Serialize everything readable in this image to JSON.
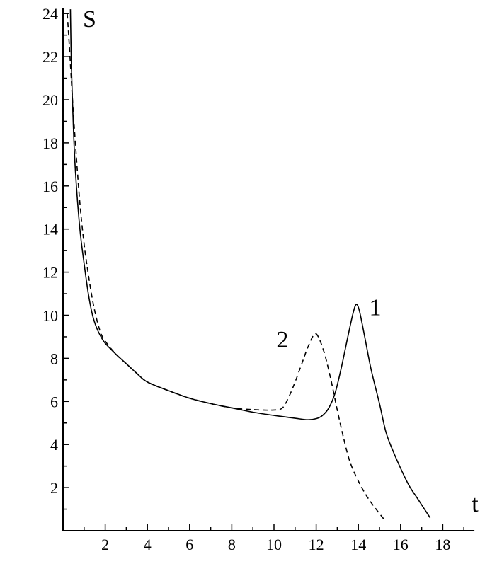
{
  "chart_data": {
    "type": "line",
    "title": "",
    "xlabel": "t",
    "ylabel": "S",
    "xlim": [
      0,
      19.5
    ],
    "ylim": [
      0,
      24.2
    ],
    "grid": false,
    "legend": "none",
    "x_ticks": [
      2,
      4,
      6,
      8,
      10,
      12,
      14,
      16,
      18
    ],
    "y_ticks": [
      2,
      4,
      6,
      8,
      10,
      12,
      14,
      16,
      18,
      20,
      22,
      24
    ],
    "series": [
      {
        "name": "1",
        "style": "solid",
        "color": "#000000",
        "points": [
          [
            0.35,
            24.2
          ],
          [
            0.4,
            21.5
          ],
          [
            0.5,
            18.5
          ],
          [
            0.6,
            16.5
          ],
          [
            0.8,
            14.0
          ],
          [
            1.0,
            12.4
          ],
          [
            1.2,
            11.0
          ],
          [
            1.4,
            10.0
          ],
          [
            1.6,
            9.4
          ],
          [
            1.8,
            9.0
          ],
          [
            2.0,
            8.7
          ],
          [
            2.5,
            8.2
          ],
          [
            3.0,
            7.75
          ],
          [
            3.5,
            7.3
          ],
          [
            4.0,
            6.9
          ],
          [
            5.0,
            6.5
          ],
          [
            6.0,
            6.15
          ],
          [
            7.0,
            5.9
          ],
          [
            8.0,
            5.7
          ],
          [
            9.0,
            5.5
          ],
          [
            10.0,
            5.35
          ],
          [
            11.0,
            5.22
          ],
          [
            11.6,
            5.15
          ],
          [
            12.0,
            5.2
          ],
          [
            12.3,
            5.35
          ],
          [
            12.6,
            5.7
          ],
          [
            12.9,
            6.4
          ],
          [
            13.2,
            7.6
          ],
          [
            13.5,
            9.0
          ],
          [
            13.75,
            10.1
          ],
          [
            13.9,
            10.5
          ],
          [
            14.05,
            10.2
          ],
          [
            14.3,
            9.0
          ],
          [
            14.6,
            7.5
          ],
          [
            15.0,
            5.9
          ],
          [
            15.3,
            4.6
          ],
          [
            15.6,
            3.8
          ],
          [
            16.0,
            2.9
          ],
          [
            16.4,
            2.1
          ],
          [
            16.8,
            1.5
          ],
          [
            17.1,
            1.05
          ],
          [
            17.4,
            0.6
          ]
        ]
      },
      {
        "name": "2",
        "style": "dashed",
        "color": "#000000",
        "points": [
          [
            0.2,
            24.0
          ],
          [
            0.3,
            22.5
          ],
          [
            0.45,
            20.0
          ],
          [
            0.6,
            17.8
          ],
          [
            0.8,
            15.2
          ],
          [
            1.0,
            13.3
          ],
          [
            1.2,
            11.9
          ],
          [
            1.4,
            10.7
          ],
          [
            1.6,
            9.8
          ],
          [
            1.8,
            9.15
          ],
          [
            2.0,
            8.8
          ],
          [
            2.5,
            8.2
          ],
          [
            3.0,
            7.75
          ],
          [
            3.5,
            7.3
          ],
          [
            4.0,
            6.9
          ],
          [
            5.0,
            6.5
          ],
          [
            6.0,
            6.15
          ],
          [
            7.0,
            5.9
          ],
          [
            8.0,
            5.7
          ],
          [
            9.0,
            5.62
          ],
          [
            10.0,
            5.6
          ],
          [
            10.4,
            5.7
          ],
          [
            10.7,
            6.2
          ],
          [
            11.0,
            6.9
          ],
          [
            11.3,
            7.7
          ],
          [
            11.6,
            8.5
          ],
          [
            11.9,
            9.1
          ],
          [
            12.1,
            9.0
          ],
          [
            12.4,
            8.2
          ],
          [
            12.7,
            7.0
          ],
          [
            13.0,
            5.6
          ],
          [
            13.3,
            4.3
          ],
          [
            13.6,
            3.2
          ],
          [
            14.0,
            2.3
          ],
          [
            14.4,
            1.6
          ],
          [
            14.8,
            1.05
          ],
          [
            15.2,
            0.55
          ]
        ]
      }
    ],
    "annotations": [
      {
        "text": "1",
        "x": 14.8,
        "y": 10.0
      },
      {
        "text": "2",
        "x": 10.4,
        "y": 8.5
      }
    ]
  }
}
